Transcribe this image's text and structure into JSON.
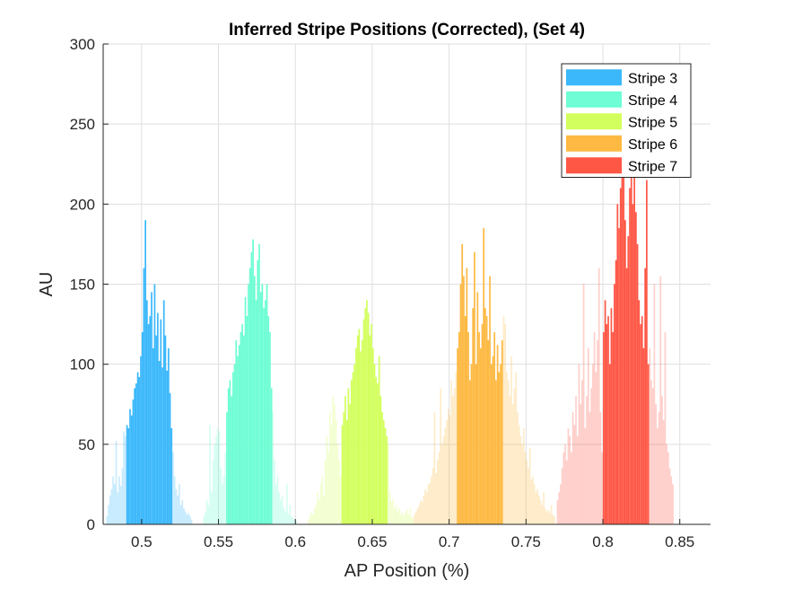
{
  "chart_data": {
    "type": "bar",
    "title": "Inferred Stripe Positions (Corrected),  (Set 4)",
    "xlabel": "AP Position (%)",
    "ylabel": "AU",
    "xlim": [
      0.475,
      0.87
    ],
    "ylim": [
      0,
      300
    ],
    "xticks": [
      0.5,
      0.55,
      0.6,
      0.65,
      0.7,
      0.75,
      0.8,
      0.85
    ],
    "xtick_labels": [
      "0.5",
      "0.55",
      "0.6",
      "0.65",
      "0.7",
      "0.75",
      "0.8",
      "0.85"
    ],
    "yticks": [
      0,
      50,
      100,
      150,
      200,
      250,
      300
    ],
    "ytick_labels": [
      "0",
      "50",
      "100",
      "150",
      "200",
      "250",
      "300"
    ],
    "grid": true,
    "legend_position": "top-right",
    "bin_width": 0.001,
    "series": [
      {
        "name": "Stripe 3",
        "color": "#3bb8fb",
        "core_range": [
          0.49,
          0.52
        ],
        "x": [
          0.477,
          0.478,
          0.479,
          0.48,
          0.481,
          0.482,
          0.483,
          0.484,
          0.485,
          0.486,
          0.487,
          0.488,
          0.489,
          0.49,
          0.491,
          0.492,
          0.493,
          0.494,
          0.495,
          0.496,
          0.497,
          0.498,
          0.499,
          0.5,
          0.501,
          0.502,
          0.503,
          0.504,
          0.505,
          0.506,
          0.507,
          0.508,
          0.509,
          0.51,
          0.511,
          0.512,
          0.513,
          0.514,
          0.515,
          0.516,
          0.517,
          0.518,
          0.519,
          0.52,
          0.521,
          0.522,
          0.523,
          0.524,
          0.525,
          0.526,
          0.527,
          0.528,
          0.529,
          0.53,
          0.531,
          0.532
        ],
        "values": [
          5,
          12,
          18,
          22,
          30,
          25,
          52,
          20,
          30,
          24,
          35,
          58,
          55,
          62,
          60,
          72,
          68,
          78,
          85,
          88,
          95,
          92,
          105,
          120,
          160,
          190,
          140,
          125,
          130,
          145,
          110,
          150,
          118,
          132,
          102,
          128,
          98,
          140,
          118,
          96,
          110,
          82,
          60,
          45,
          30,
          22,
          18,
          25,
          12,
          15,
          10,
          8,
          6,
          7,
          5,
          3
        ]
      },
      {
        "name": "Stripe 4",
        "color": "#6efdd4",
        "core_range": [
          0.555,
          0.585
        ],
        "x": [
          0.54,
          0.541,
          0.542,
          0.543,
          0.544,
          0.545,
          0.546,
          0.547,
          0.548,
          0.549,
          0.55,
          0.551,
          0.552,
          0.553,
          0.554,
          0.555,
          0.556,
          0.557,
          0.558,
          0.559,
          0.56,
          0.561,
          0.562,
          0.563,
          0.564,
          0.565,
          0.566,
          0.567,
          0.568,
          0.569,
          0.57,
          0.571,
          0.572,
          0.573,
          0.574,
          0.575,
          0.576,
          0.577,
          0.578,
          0.579,
          0.58,
          0.581,
          0.582,
          0.583,
          0.584,
          0.585,
          0.586,
          0.587,
          0.588,
          0.589,
          0.59,
          0.591,
          0.592,
          0.593,
          0.594,
          0.595,
          0.596,
          0.597,
          0.598,
          0.599,
          0.6
        ],
        "values": [
          5,
          8,
          15,
          12,
          62,
          20,
          40,
          50,
          55,
          60,
          58,
          35,
          25,
          30,
          45,
          70,
          85,
          90,
          80,
          95,
          100,
          115,
          105,
          112,
          120,
          125,
          118,
          142,
          130,
          150,
          160,
          170,
          178,
          155,
          140,
          165,
          175,
          145,
          150,
          135,
          140,
          150,
          130,
          120,
          85,
          70,
          40,
          25,
          30,
          20,
          15,
          18,
          10,
          8,
          25,
          6,
          12,
          5,
          4,
          3,
          2
        ]
      },
      {
        "name": "Stripe 5",
        "color": "#d3ff5e",
        "core_range": [
          0.63,
          0.66
        ],
        "x": [
          0.608,
          0.609,
          0.61,
          0.611,
          0.612,
          0.613,
          0.614,
          0.615,
          0.616,
          0.617,
          0.618,
          0.619,
          0.62,
          0.621,
          0.622,
          0.623,
          0.624,
          0.625,
          0.626,
          0.627,
          0.628,
          0.629,
          0.63,
          0.631,
          0.632,
          0.633,
          0.634,
          0.635,
          0.636,
          0.637,
          0.638,
          0.639,
          0.64,
          0.641,
          0.642,
          0.643,
          0.644,
          0.645,
          0.646,
          0.647,
          0.648,
          0.649,
          0.65,
          0.651,
          0.652,
          0.653,
          0.654,
          0.655,
          0.656,
          0.657,
          0.658,
          0.659,
          0.66,
          0.661,
          0.662,
          0.663,
          0.664,
          0.665,
          0.666,
          0.667,
          0.668,
          0.669,
          0.67,
          0.671,
          0.672,
          0.673,
          0.674,
          0.675,
          0.676
        ],
        "values": [
          3,
          5,
          8,
          6,
          10,
          12,
          20,
          15,
          25,
          30,
          18,
          40,
          55,
          45,
          70,
          62,
          80,
          75,
          65,
          50,
          40,
          30,
          62,
          70,
          80,
          65,
          85,
          75,
          90,
          95,
          100,
          110,
          118,
          122,
          108,
          115,
          128,
          135,
          140,
          132,
          118,
          125,
          110,
          100,
          92,
          88,
          105,
          80,
          70,
          65,
          60,
          55,
          50,
          20,
          14,
          16,
          10,
          12,
          8,
          10,
          6,
          8,
          5,
          7,
          9,
          6,
          10,
          5,
          4
        ]
      },
      {
        "name": "Stripe 6",
        "color": "#fdb942",
        "core_range": [
          0.705,
          0.735
        ],
        "x": [
          0.677,
          0.678,
          0.679,
          0.68,
          0.681,
          0.682,
          0.683,
          0.684,
          0.685,
          0.686,
          0.687,
          0.688,
          0.689,
          0.69,
          0.691,
          0.692,
          0.693,
          0.694,
          0.695,
          0.696,
          0.697,
          0.698,
          0.699,
          0.7,
          0.701,
          0.702,
          0.703,
          0.704,
          0.705,
          0.706,
          0.707,
          0.708,
          0.709,
          0.71,
          0.711,
          0.712,
          0.713,
          0.714,
          0.715,
          0.716,
          0.717,
          0.718,
          0.719,
          0.72,
          0.721,
          0.722,
          0.723,
          0.724,
          0.725,
          0.726,
          0.727,
          0.728,
          0.729,
          0.73,
          0.731,
          0.732,
          0.733,
          0.734,
          0.735,
          0.736,
          0.737,
          0.738,
          0.739,
          0.74,
          0.741,
          0.742,
          0.743,
          0.744,
          0.745,
          0.746,
          0.747,
          0.748,
          0.749,
          0.75,
          0.751,
          0.752,
          0.753,
          0.754,
          0.755,
          0.756,
          0.757,
          0.758,
          0.759,
          0.76,
          0.761,
          0.762,
          0.763,
          0.764,
          0.765,
          0.766,
          0.767,
          0.768
        ],
        "values": [
          6,
          8,
          10,
          12,
          15,
          14,
          18,
          22,
          20,
          25,
          26,
          30,
          35,
          70,
          32,
          40,
          45,
          85,
          50,
          55,
          60,
          65,
          72,
          68,
          90,
          80,
          85,
          95,
          110,
          120,
          150,
          175,
          155,
          130,
          160,
          120,
          90,
          100,
          135,
          170,
          100,
          145,
          120,
          110,
          125,
          185,
          135,
          130,
          115,
          155,
          100,
          105,
          120,
          90,
          112,
          95,
          100,
          115,
          130,
          125,
          95,
          90,
          80,
          105,
          75,
          85,
          95,
          70,
          62,
          55,
          50,
          60,
          45,
          40,
          35,
          48,
          28,
          30,
          25,
          20,
          22,
          18,
          15,
          12,
          20,
          10,
          8,
          9,
          7,
          12,
          6,
          5
        ]
      },
      {
        "name": "Stripe 7",
        "color": "#fe5746",
        "core_range": [
          0.8,
          0.83
        ],
        "x": [
          0.77,
          0.771,
          0.772,
          0.773,
          0.774,
          0.775,
          0.776,
          0.777,
          0.778,
          0.779,
          0.78,
          0.781,
          0.782,
          0.783,
          0.784,
          0.785,
          0.786,
          0.787,
          0.788,
          0.789,
          0.79,
          0.791,
          0.792,
          0.793,
          0.794,
          0.795,
          0.796,
          0.797,
          0.798,
          0.799,
          0.8,
          0.801,
          0.802,
          0.803,
          0.804,
          0.805,
          0.806,
          0.807,
          0.808,
          0.809,
          0.81,
          0.811,
          0.812,
          0.813,
          0.814,
          0.815,
          0.816,
          0.817,
          0.818,
          0.819,
          0.82,
          0.821,
          0.822,
          0.823,
          0.824,
          0.825,
          0.826,
          0.827,
          0.828,
          0.829,
          0.83,
          0.831,
          0.832,
          0.833,
          0.834,
          0.835,
          0.836,
          0.837,
          0.838,
          0.839,
          0.84,
          0.841,
          0.842,
          0.843,
          0.844,
          0.845
        ],
        "values": [
          15,
          20,
          25,
          35,
          45,
          50,
          40,
          60,
          55,
          45,
          70,
          62,
          80,
          55,
          100,
          75,
          90,
          150,
          60,
          80,
          110,
          70,
          85,
          100,
          120,
          95,
          115,
          160,
          70,
          45,
          120,
          140,
          125,
          130,
          100,
          135,
          120,
          150,
          165,
          200,
          185,
          210,
          225,
          220,
          190,
          160,
          180,
          210,
          230,
          200,
          225,
          195,
          175,
          140,
          125,
          130,
          110,
          160,
          215,
          100,
          110,
          90,
          85,
          150,
          75,
          60,
          70,
          155,
          80,
          65,
          120,
          50,
          45,
          35,
          30,
          25
        ]
      }
    ]
  }
}
